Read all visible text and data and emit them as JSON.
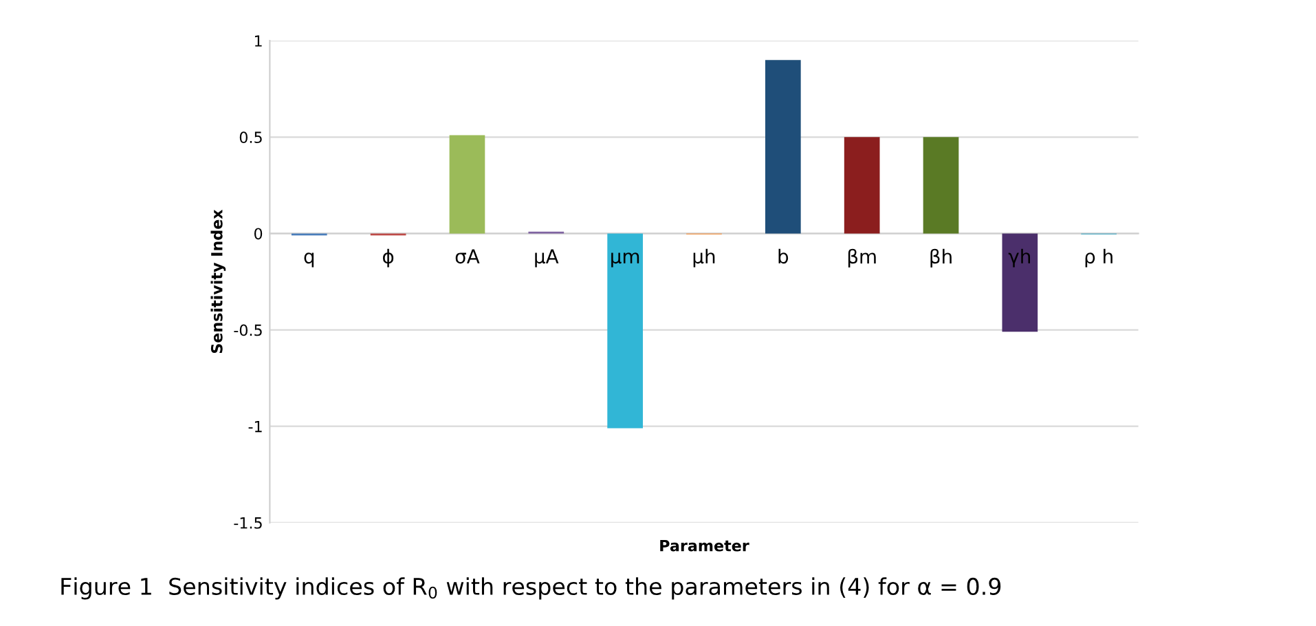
{
  "chart_data": {
    "type": "bar",
    "xlabel": "Parameter",
    "ylabel": "Sensitivity Index",
    "categories": [
      "q",
      "ϕ",
      "σA",
      "μA",
      "μm",
      "μh",
      "b",
      "βm",
      "βh",
      "γh",
      "ρ h"
    ],
    "values": [
      -0.01,
      -0.01,
      0.51,
      0.01,
      -1.01,
      -0.005,
      0.9,
      0.5,
      0.5,
      -0.51,
      -0.005
    ],
    "colors": [
      "#4a7ebb",
      "#be4b48",
      "#9bbb59",
      "#8064a2",
      "#31b6d6",
      "#f79646",
      "#1f4e79",
      "#8b1e1e",
      "#5a7a25",
      "#4b2f6b",
      "#4bacc6"
    ],
    "ylim": [
      -1.5,
      1
    ],
    "yticks": [
      1,
      0.5,
      0,
      -0.5,
      -1,
      -1.5
    ],
    "grid": "y",
    "annotations": [
      "Figure 1  Sensitivity indices of R$_{0}$ with respect to the parameters in (4) for α = 0.9"
    ]
  }
}
